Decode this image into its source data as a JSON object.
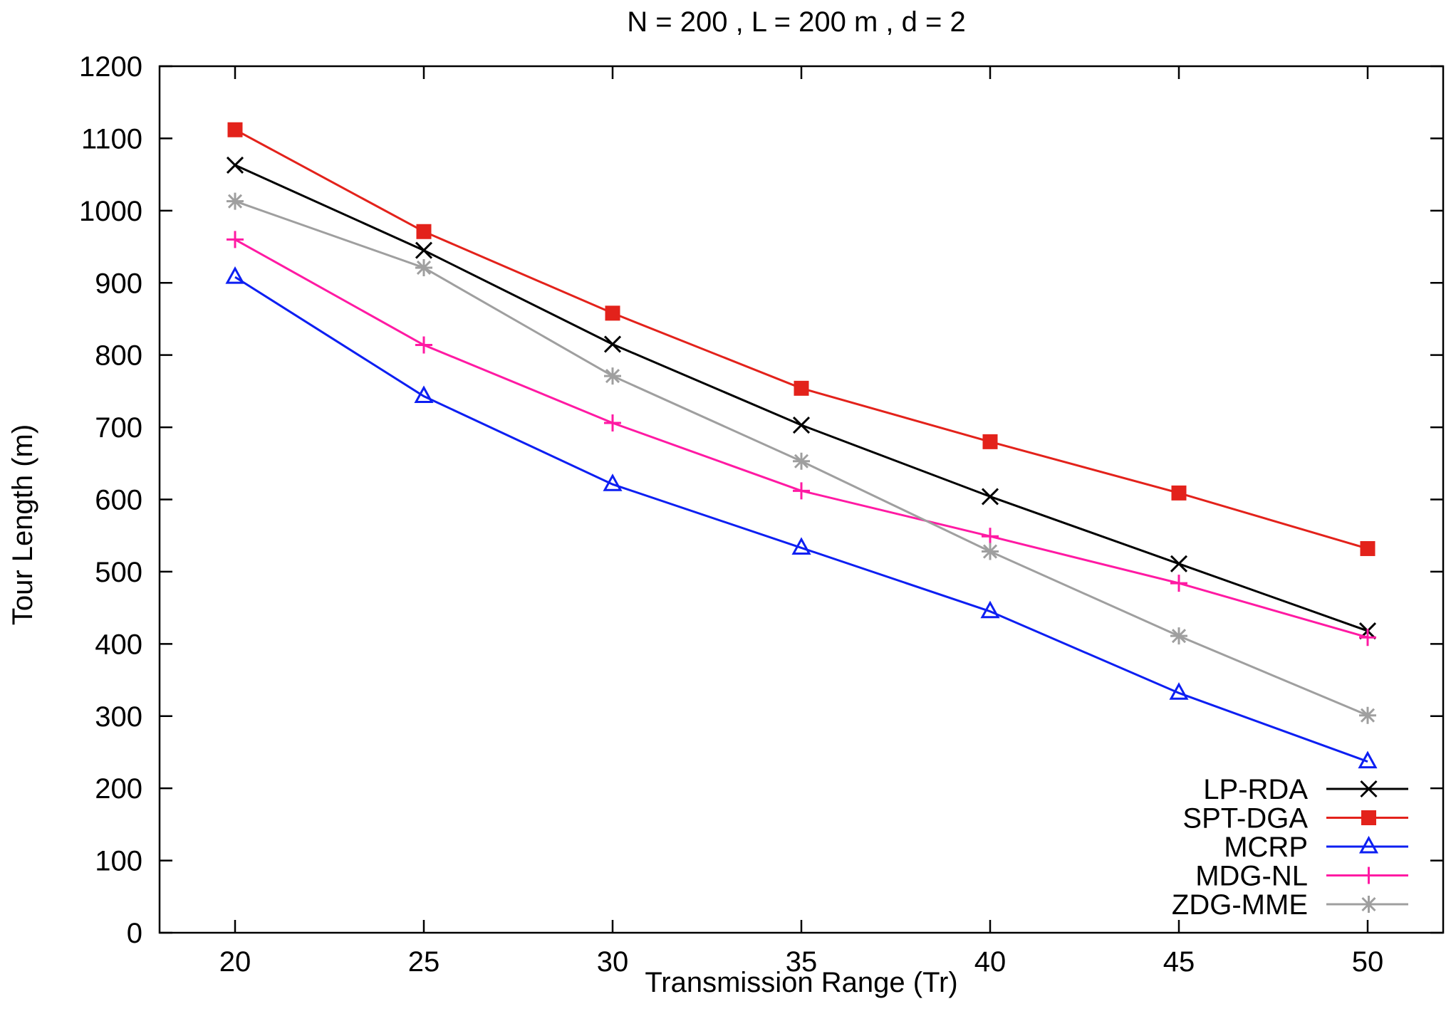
{
  "chart_data": {
    "type": "line",
    "title": "N = 200 , L = 200 m , d = 2",
    "xlabel": "Transmission Range (Tr)",
    "ylabel": "Tour Length (m)",
    "x": [
      20,
      25,
      30,
      35,
      40,
      45,
      50
    ],
    "xlim": [
      18,
      52
    ],
    "ylim": [
      0,
      1200
    ],
    "xticks": [
      20,
      25,
      30,
      35,
      40,
      45,
      50
    ],
    "yticks": [
      0,
      100,
      200,
      300,
      400,
      500,
      600,
      700,
      800,
      900,
      1000,
      1100,
      1200
    ],
    "grid": false,
    "legend_position": "bottom-right",
    "series": [
      {
        "name": "LP-RDA",
        "color": "#000000",
        "marker": "x",
        "values": [
          1063,
          945,
          815,
          703,
          604,
          511,
          418
        ]
      },
      {
        "name": "SPT-DGA",
        "color": "#e3221b",
        "marker": "square",
        "values": [
          1112,
          971,
          858,
          754,
          680,
          609,
          532
        ]
      },
      {
        "name": "MCRP",
        "color": "#0d1ff2",
        "marker": "triangle",
        "values": [
          908,
          743,
          621,
          533,
          445,
          332,
          237
        ]
      },
      {
        "name": "MDG-NL",
        "color": "#ff1aa3",
        "marker": "plus",
        "values": [
          960,
          814,
          706,
          612,
          549,
          484,
          409
        ]
      },
      {
        "name": "ZDG-MME",
        "color": "#9f9f9f",
        "marker": "star",
        "values": [
          1013,
          921,
          771,
          653,
          528,
          411,
          301
        ]
      }
    ]
  }
}
